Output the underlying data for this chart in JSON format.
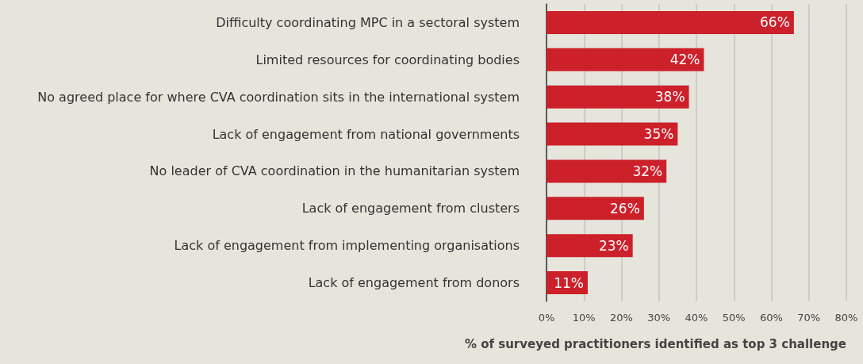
{
  "chart_data": {
    "type": "bar",
    "orientation": "horizontal",
    "xlabel": "% of surveyed practitioners identified as top 3 challenge",
    "categories": [
      "Difficulty coordinating MPC in a sectoral system",
      "Limited resources for coordinating bodies",
      "No agreed place for where CVA coordination sits in the international system",
      "Lack of engagement from national governments",
      "No leader of CVA coordination in the humanitarian system",
      "Lack of engagement from clusters",
      "Lack of engagement from implementing organisations",
      "Lack of engagement from donors"
    ],
    "values": [
      66,
      42,
      38,
      35,
      32,
      26,
      23,
      11
    ],
    "value_labels": [
      "66%",
      "42%",
      "38%",
      "35%",
      "32%",
      "26%",
      "23%",
      "11%"
    ],
    "color": "#cc202a",
    "xlim": [
      0,
      80
    ],
    "xticks": [
      {
        "value": 0,
        "label": "0%"
      },
      {
        "value": 10,
        "label": "10%"
      },
      {
        "value": 20,
        "label": "20%"
      },
      {
        "value": 30,
        "label": "30%"
      },
      {
        "value": 40,
        "label": "40%"
      },
      {
        "value": 50,
        "label": "50%"
      },
      {
        "value": 60,
        "label": "60%"
      },
      {
        "value": 70,
        "label": "70%"
      },
      {
        "value": 80,
        "label": "80%"
      }
    ],
    "grid": "x"
  }
}
